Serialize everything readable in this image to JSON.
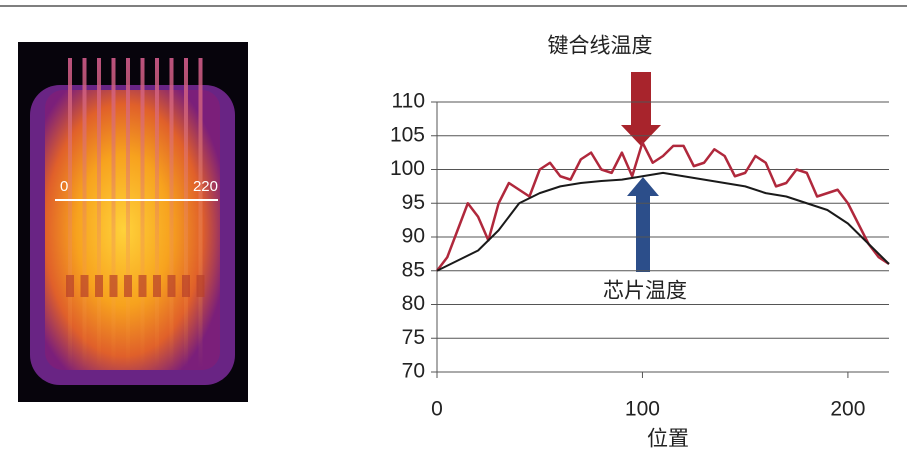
{
  "chart_data": {
    "type": "line",
    "image_labels": [
      "0",
      "220"
    ],
    "annotations": [
      "键合线温度",
      "芯片温度"
    ],
    "x_label": "位置",
    "xlim": [
      0,
      220
    ],
    "xticks": [
      0,
      100,
      200
    ],
    "ylim": [
      70,
      110
    ],
    "yticks": [
      70,
      75,
      80,
      85,
      90,
      95,
      100,
      105,
      110
    ],
    "grid": true,
    "series": [
      {
        "color": "#b0283c",
        "x": [
          0,
          5,
          10,
          15,
          20,
          25,
          30,
          35,
          40,
          45,
          50,
          55,
          60,
          65,
          70,
          75,
          80,
          85,
          90,
          95,
          100,
          105,
          110,
          115,
          120,
          125,
          130,
          135,
          140,
          145,
          150,
          155,
          160,
          165,
          170,
          175,
          180,
          185,
          190,
          195,
          200,
          205,
          210,
          215,
          220
        ],
        "values": [
          85,
          87,
          91,
          95,
          93,
          89.5,
          95,
          98,
          97,
          96,
          100,
          101,
          99,
          98.5,
          101.5,
          102.5,
          100,
          99.5,
          102.5,
          99,
          104,
          101,
          102,
          103.5,
          103.5,
          100.5,
          101,
          103,
          102,
          99,
          99.5,
          102,
          101,
          97.5,
          98,
          100,
          99.5,
          96,
          96.5,
          97,
          95,
          92,
          89,
          87,
          86
        ]
      },
      {
        "color": "#1a1a1a",
        "x": [
          0,
          10,
          20,
          30,
          40,
          50,
          60,
          70,
          80,
          90,
          100,
          110,
          120,
          130,
          140,
          150,
          160,
          170,
          180,
          190,
          200,
          210,
          220
        ],
        "values": [
          85,
          86.5,
          88,
          91,
          95,
          96.5,
          97.5,
          98,
          98.3,
          98.5,
          99,
          99.5,
          99,
          98.5,
          98,
          97.5,
          96.5,
          96,
          95,
          94,
          92,
          89,
          86
        ]
      }
    ]
  }
}
